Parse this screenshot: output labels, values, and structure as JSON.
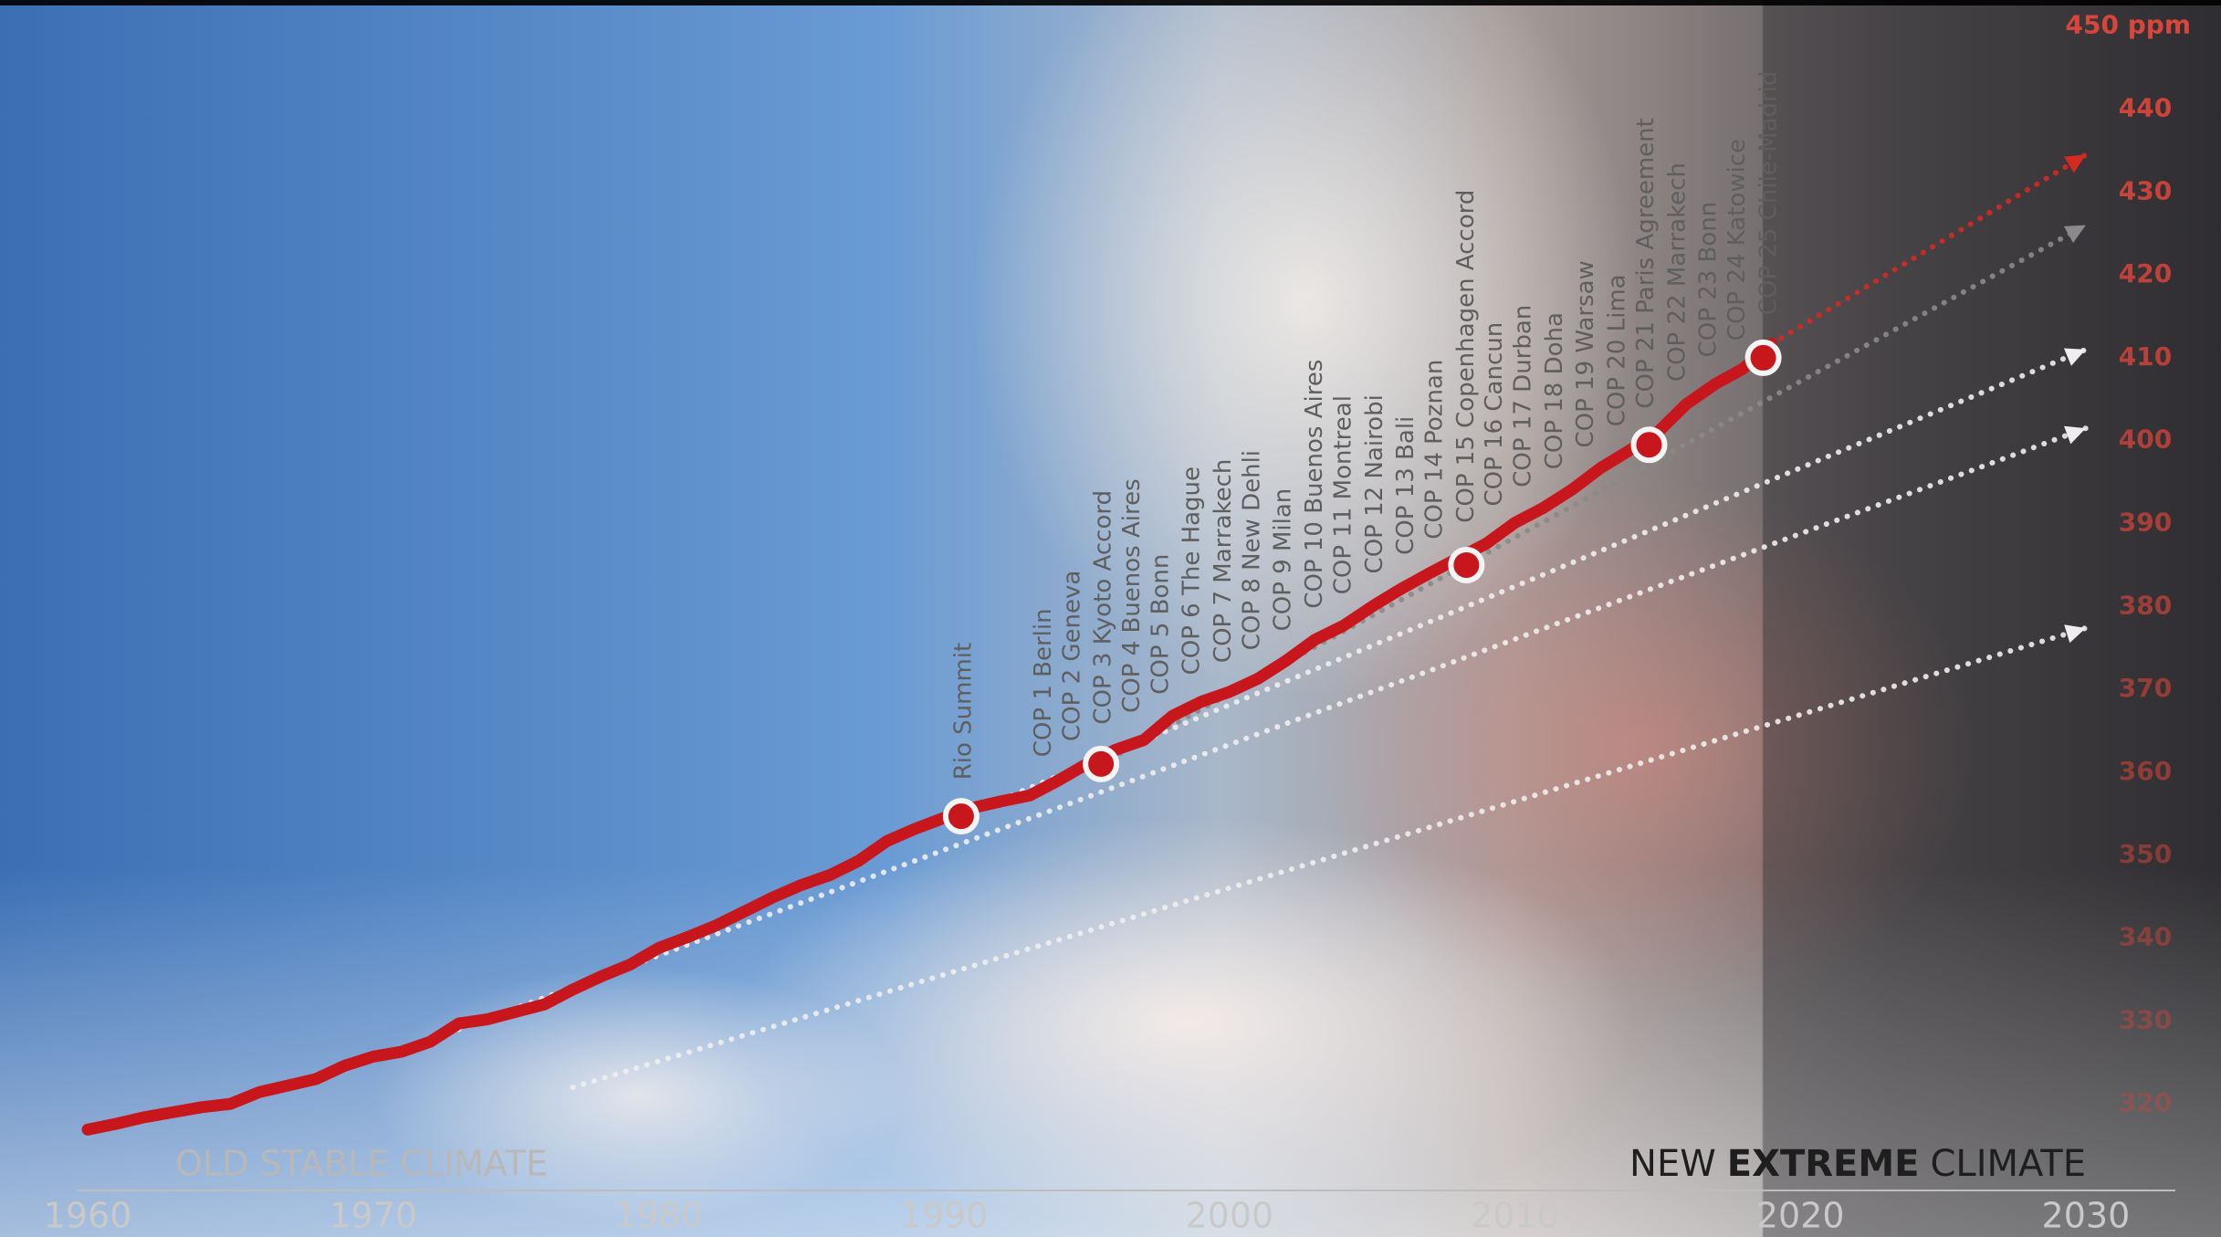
{
  "chart_data": {
    "type": "line",
    "x": [
      1960,
      1961,
      1962,
      1963,
      1964,
      1965,
      1966,
      1967,
      1968,
      1969,
      1970,
      1971,
      1972,
      1973,
      1974,
      1975,
      1976,
      1977,
      1978,
      1979,
      1980,
      1981,
      1982,
      1983,
      1984,
      1985,
      1986,
      1987,
      1988,
      1989,
      1990,
      1991,
      1992,
      1993,
      1994,
      1995,
      1996,
      1997,
      1998,
      1999,
      2000,
      2001,
      2002,
      2003,
      2004,
      2005,
      2006,
      2007,
      2008,
      2009,
      2010,
      2011,
      2012,
      2013,
      2014,
      2015,
      2016,
      2017,
      2018,
      2019
    ],
    "series": [
      {
        "color": "#c8161d",
        "values": [
          316.9,
          317.6,
          318.4,
          319.0,
          319.6,
          320.0,
          321.4,
          322.2,
          323.0,
          324.6,
          325.7,
          326.3,
          327.5,
          329.7,
          330.2,
          331.1,
          332.0,
          333.8,
          335.4,
          336.8,
          338.8,
          340.1,
          341.5,
          343.2,
          344.9,
          346.4,
          347.6,
          349.3,
          351.7,
          353.2,
          354.5,
          355.7,
          356.5,
          357.2,
          359.0,
          361.0,
          362.7,
          363.9,
          366.8,
          368.5,
          369.7,
          371.3,
          373.5,
          376.0,
          377.7,
          380.0,
          382.1,
          384.0,
          385.8,
          387.6,
          390.1,
          391.9,
          394.1,
          396.7,
          398.8,
          401.0,
          404.4,
          406.8,
          408.7,
          411.7
        ]
      }
    ],
    "projections": [
      {
        "color": "#d42a22",
        "x": [
          2019,
          2030
        ],
        "values": [
          411.7,
          434.5
        ]
      },
      {
        "color": "#8a8a8a",
        "x": [
          1995.5,
          2030
        ],
        "values": [
          361,
          426
        ]
      },
      {
        "color": "#eeeeee",
        "x": [
          1990.6,
          2030
        ],
        "values": [
          354.7,
          411
        ]
      },
      {
        "color": "#eeeeee",
        "x": [
          1973,
          2030
        ],
        "values": [
          329,
          401.5
        ]
      },
      {
        "color": "#eeeeee",
        "x": [
          1977,
          2030
        ],
        "values": [
          322,
          377.4
        ]
      }
    ],
    "events": {
      "x": [
        1990.6,
        1995.5,
        2008.3,
        2014.7,
        2018.7
      ],
      "values": [
        354.7,
        361,
        385,
        399.5,
        410
      ]
    },
    "annotations": [
      {
        "text": "Rio Summit",
        "x": 1990.7
      },
      {
        "text": "COP 1 Berlin",
        "x": 1993.5
      },
      {
        "text": "COP 2 Geneva",
        "x": 1994.5
      },
      {
        "text": "COP 3 Kyoto Accord",
        "x": 1995.6
      },
      {
        "text": "COP 4 Buenos Aires",
        "x": 1996.6
      },
      {
        "text": "COP 5 Bonn",
        "x": 1997.6
      },
      {
        "text": "COP 6 The Hague",
        "x": 1998.7
      },
      {
        "text": "COP 7 Marrakech",
        "x": 1999.8
      },
      {
        "text": "COP 8 New Dehli",
        "x": 2000.8
      },
      {
        "text": "COP 9 Milan",
        "x": 2001.9
      },
      {
        "text": "COP 10 Buenos Aires",
        "x": 2003.0
      },
      {
        "text": "COP 11 Montreal",
        "x": 2004.0
      },
      {
        "text": "COP 12 Nairobi",
        "x": 2005.1
      },
      {
        "text": "COP 13 Bali",
        "x": 2006.2
      },
      {
        "text": "COP 14 Poznan",
        "x": 2007.2
      },
      {
        "text": "COP 15 Copenhagen Accord",
        "x": 2008.3
      },
      {
        "text": "COP 16 Cancun",
        "x": 2009.3
      },
      {
        "text": "COP 17 Durban",
        "x": 2010.3
      },
      {
        "text": "COP 18 Doha",
        "x": 2011.4
      },
      {
        "text": "COP 19 Warsaw",
        "x": 2012.5
      },
      {
        "text": "COP 20 Lima",
        "x": 2013.6
      },
      {
        "text": "COP 21 Paris Agreement",
        "x": 2014.6
      },
      {
        "text": "COP 22 Marrakech",
        "x": 2015.7
      },
      {
        "text": "COP 23 Bonn",
        "x": 2016.8
      },
      {
        "text": "COP 24 Katowice",
        "x": 2017.8
      },
      {
        "text": "COP 25 Chile-Madrid",
        "x": 2018.9
      }
    ],
    "xlim": [
      1958,
      2034
    ],
    "ylim": [
      310,
      450
    ],
    "xticks": [
      1960,
      1970,
      1980,
      1990,
      2000,
      2010,
      2020,
      2030
    ],
    "yticks": [
      320,
      330,
      340,
      350,
      360,
      370,
      380,
      390,
      400,
      410,
      420,
      430,
      440,
      {
        "value": 450,
        "label": "450 ppm"
      }
    ],
    "left_label": "OLD STABLE CLIMATE",
    "right_label": [
      "NEW",
      "EXTREME",
      "CLIMATE"
    ]
  }
}
